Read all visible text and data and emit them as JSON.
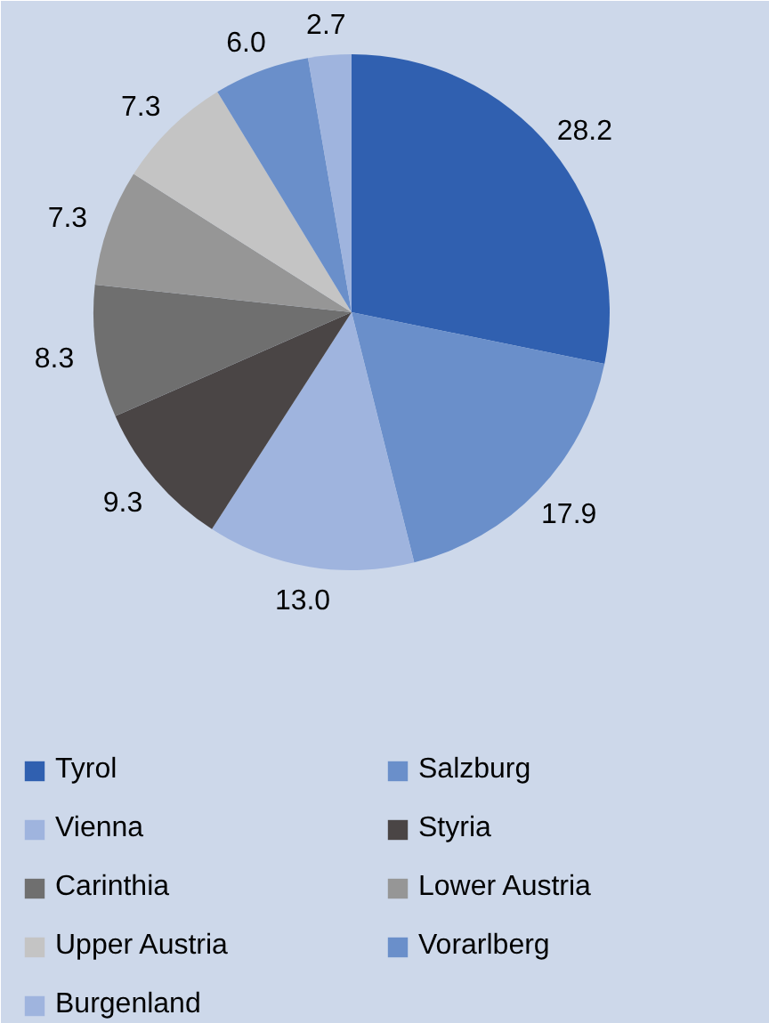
{
  "chart_data": {
    "type": "pie",
    "categories": [
      "Tyrol",
      "Salzburg",
      "Vienna",
      "Styria",
      "Carinthia",
      "Lower Austria",
      "Upper Austria",
      "Vorarlberg",
      "Burgenland"
    ],
    "values": [
      28.2,
      17.9,
      13.0,
      9.3,
      8.3,
      7.3,
      7.3,
      6.0,
      2.7
    ],
    "colors": [
      "#3060b0",
      "#6a8fca",
      "#9fb4de",
      "#4a4545",
      "#6f6f6f",
      "#969696",
      "#c4c4c4",
      "#6a8fca",
      "#9fb4de"
    ],
    "value_labels": [
      "28.2",
      "17.9",
      "13.0",
      "9.3",
      "8.3",
      "7.3",
      "7.3",
      "6.0",
      "2.7"
    ],
    "legend": "bottom"
  }
}
